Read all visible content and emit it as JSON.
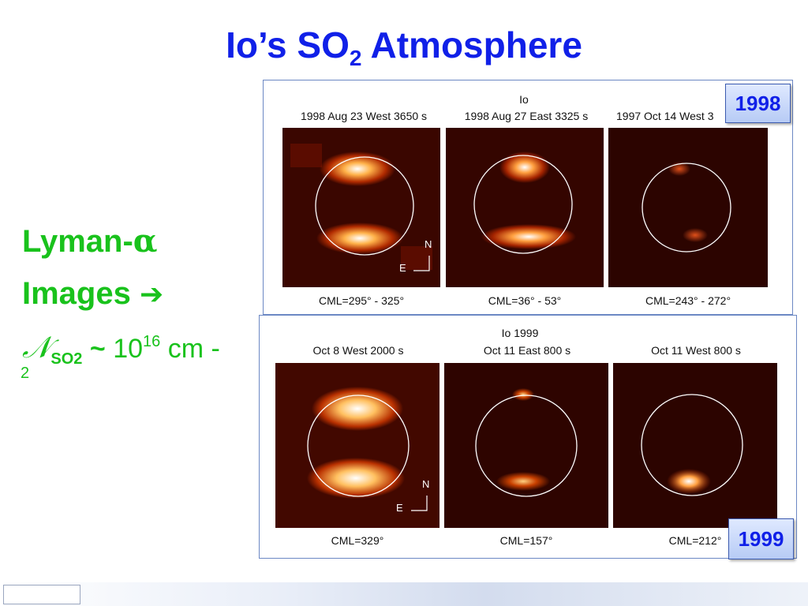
{
  "title": {
    "main": "Io’s SO",
    "sub": "2",
    "rest": " Atmosphere"
  },
  "left": {
    "line1": "Lyman-",
    "alpha": "α",
    "line2": "Images ",
    "arrow": "➔",
    "n_symbol": "𝒩",
    "n_sub": "SO2",
    "tilde": " ~ ",
    "value": "10",
    "exp": "16",
    "unit": " cm -",
    "unit_exp": "2"
  },
  "panel_1998": {
    "heading": "Io",
    "year_label": "1998",
    "images": [
      {
        "caption": "1998 Aug 23 West 3650 s",
        "cml": "CML=295° - 325°"
      },
      {
        "caption": "1998 Aug 27 East 3325 s",
        "cml": "CML=36° - 53°"
      },
      {
        "caption": "1997 Oct 14 West 3",
        "cml": "CML=243° - 272°"
      }
    ],
    "compass_n": "N",
    "compass_e": "E"
  },
  "panel_1999": {
    "heading": "Io 1999",
    "year_label": "1999",
    "images": [
      {
        "caption": "Oct 8 West 2000 s",
        "cml": "CML=329°"
      },
      {
        "caption": "Oct 11 East 800 s",
        "cml": "CML=157°"
      },
      {
        "caption": "Oct 11 West 800 s",
        "cml": "CML=212°"
      }
    ],
    "compass_n": "N",
    "compass_e": "E"
  }
}
